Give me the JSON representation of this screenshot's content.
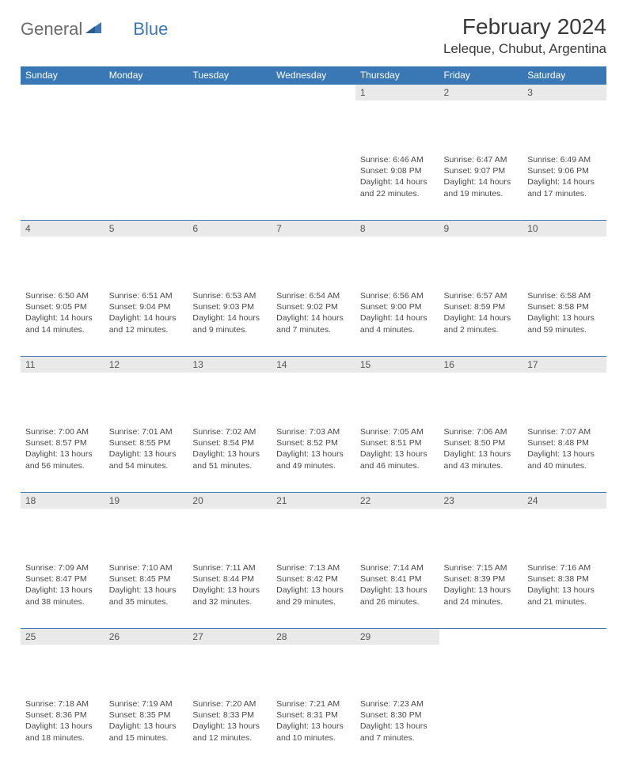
{
  "logo": {
    "text1": "General",
    "text2": "Blue"
  },
  "title": "February 2024",
  "location": "Leleque, Chubut, Argentina",
  "colors": {
    "header_blue": "#3a78b5",
    "daynum_bg": "#e9e9e9",
    "text_gray": "#4a4a4a",
    "logo_gray": "#6b6b6b"
  },
  "day_headers": [
    "Sunday",
    "Monday",
    "Tuesday",
    "Wednesday",
    "Thursday",
    "Friday",
    "Saturday"
  ],
  "weeks": [
    [
      null,
      null,
      null,
      null,
      {
        "n": "1",
        "sr": "6:46 AM",
        "ss": "9:08 PM",
        "dl": "14 hours and 22 minutes."
      },
      {
        "n": "2",
        "sr": "6:47 AM",
        "ss": "9:07 PM",
        "dl": "14 hours and 19 minutes."
      },
      {
        "n": "3",
        "sr": "6:49 AM",
        "ss": "9:06 PM",
        "dl": "14 hours and 17 minutes."
      }
    ],
    [
      {
        "n": "4",
        "sr": "6:50 AM",
        "ss": "9:05 PM",
        "dl": "14 hours and 14 minutes."
      },
      {
        "n": "5",
        "sr": "6:51 AM",
        "ss": "9:04 PM",
        "dl": "14 hours and 12 minutes."
      },
      {
        "n": "6",
        "sr": "6:53 AM",
        "ss": "9:03 PM",
        "dl": "14 hours and 9 minutes."
      },
      {
        "n": "7",
        "sr": "6:54 AM",
        "ss": "9:02 PM",
        "dl": "14 hours and 7 minutes."
      },
      {
        "n": "8",
        "sr": "6:56 AM",
        "ss": "9:00 PM",
        "dl": "14 hours and 4 minutes."
      },
      {
        "n": "9",
        "sr": "6:57 AM",
        "ss": "8:59 PM",
        "dl": "14 hours and 2 minutes."
      },
      {
        "n": "10",
        "sr": "6:58 AM",
        "ss": "8:58 PM",
        "dl": "13 hours and 59 minutes."
      }
    ],
    [
      {
        "n": "11",
        "sr": "7:00 AM",
        "ss": "8:57 PM",
        "dl": "13 hours and 56 minutes."
      },
      {
        "n": "12",
        "sr": "7:01 AM",
        "ss": "8:55 PM",
        "dl": "13 hours and 54 minutes."
      },
      {
        "n": "13",
        "sr": "7:02 AM",
        "ss": "8:54 PM",
        "dl": "13 hours and 51 minutes."
      },
      {
        "n": "14",
        "sr": "7:03 AM",
        "ss": "8:52 PM",
        "dl": "13 hours and 49 minutes."
      },
      {
        "n": "15",
        "sr": "7:05 AM",
        "ss": "8:51 PM",
        "dl": "13 hours and 46 minutes."
      },
      {
        "n": "16",
        "sr": "7:06 AM",
        "ss": "8:50 PM",
        "dl": "13 hours and 43 minutes."
      },
      {
        "n": "17",
        "sr": "7:07 AM",
        "ss": "8:48 PM",
        "dl": "13 hours and 40 minutes."
      }
    ],
    [
      {
        "n": "18",
        "sr": "7:09 AM",
        "ss": "8:47 PM",
        "dl": "13 hours and 38 minutes."
      },
      {
        "n": "19",
        "sr": "7:10 AM",
        "ss": "8:45 PM",
        "dl": "13 hours and 35 minutes."
      },
      {
        "n": "20",
        "sr": "7:11 AM",
        "ss": "8:44 PM",
        "dl": "13 hours and 32 minutes."
      },
      {
        "n": "21",
        "sr": "7:13 AM",
        "ss": "8:42 PM",
        "dl": "13 hours and 29 minutes."
      },
      {
        "n": "22",
        "sr": "7:14 AM",
        "ss": "8:41 PM",
        "dl": "13 hours and 26 minutes."
      },
      {
        "n": "23",
        "sr": "7:15 AM",
        "ss": "8:39 PM",
        "dl": "13 hours and 24 minutes."
      },
      {
        "n": "24",
        "sr": "7:16 AM",
        "ss": "8:38 PM",
        "dl": "13 hours and 21 minutes."
      }
    ],
    [
      {
        "n": "25",
        "sr": "7:18 AM",
        "ss": "8:36 PM",
        "dl": "13 hours and 18 minutes."
      },
      {
        "n": "26",
        "sr": "7:19 AM",
        "ss": "8:35 PM",
        "dl": "13 hours and 15 minutes."
      },
      {
        "n": "27",
        "sr": "7:20 AM",
        "ss": "8:33 PM",
        "dl": "13 hours and 12 minutes."
      },
      {
        "n": "28",
        "sr": "7:21 AM",
        "ss": "8:31 PM",
        "dl": "13 hours and 10 minutes."
      },
      {
        "n": "29",
        "sr": "7:23 AM",
        "ss": "8:30 PM",
        "dl": "13 hours and 7 minutes."
      },
      null,
      null
    ]
  ],
  "labels": {
    "sunrise": "Sunrise:",
    "sunset": "Sunset:",
    "daylight": "Daylight:"
  }
}
